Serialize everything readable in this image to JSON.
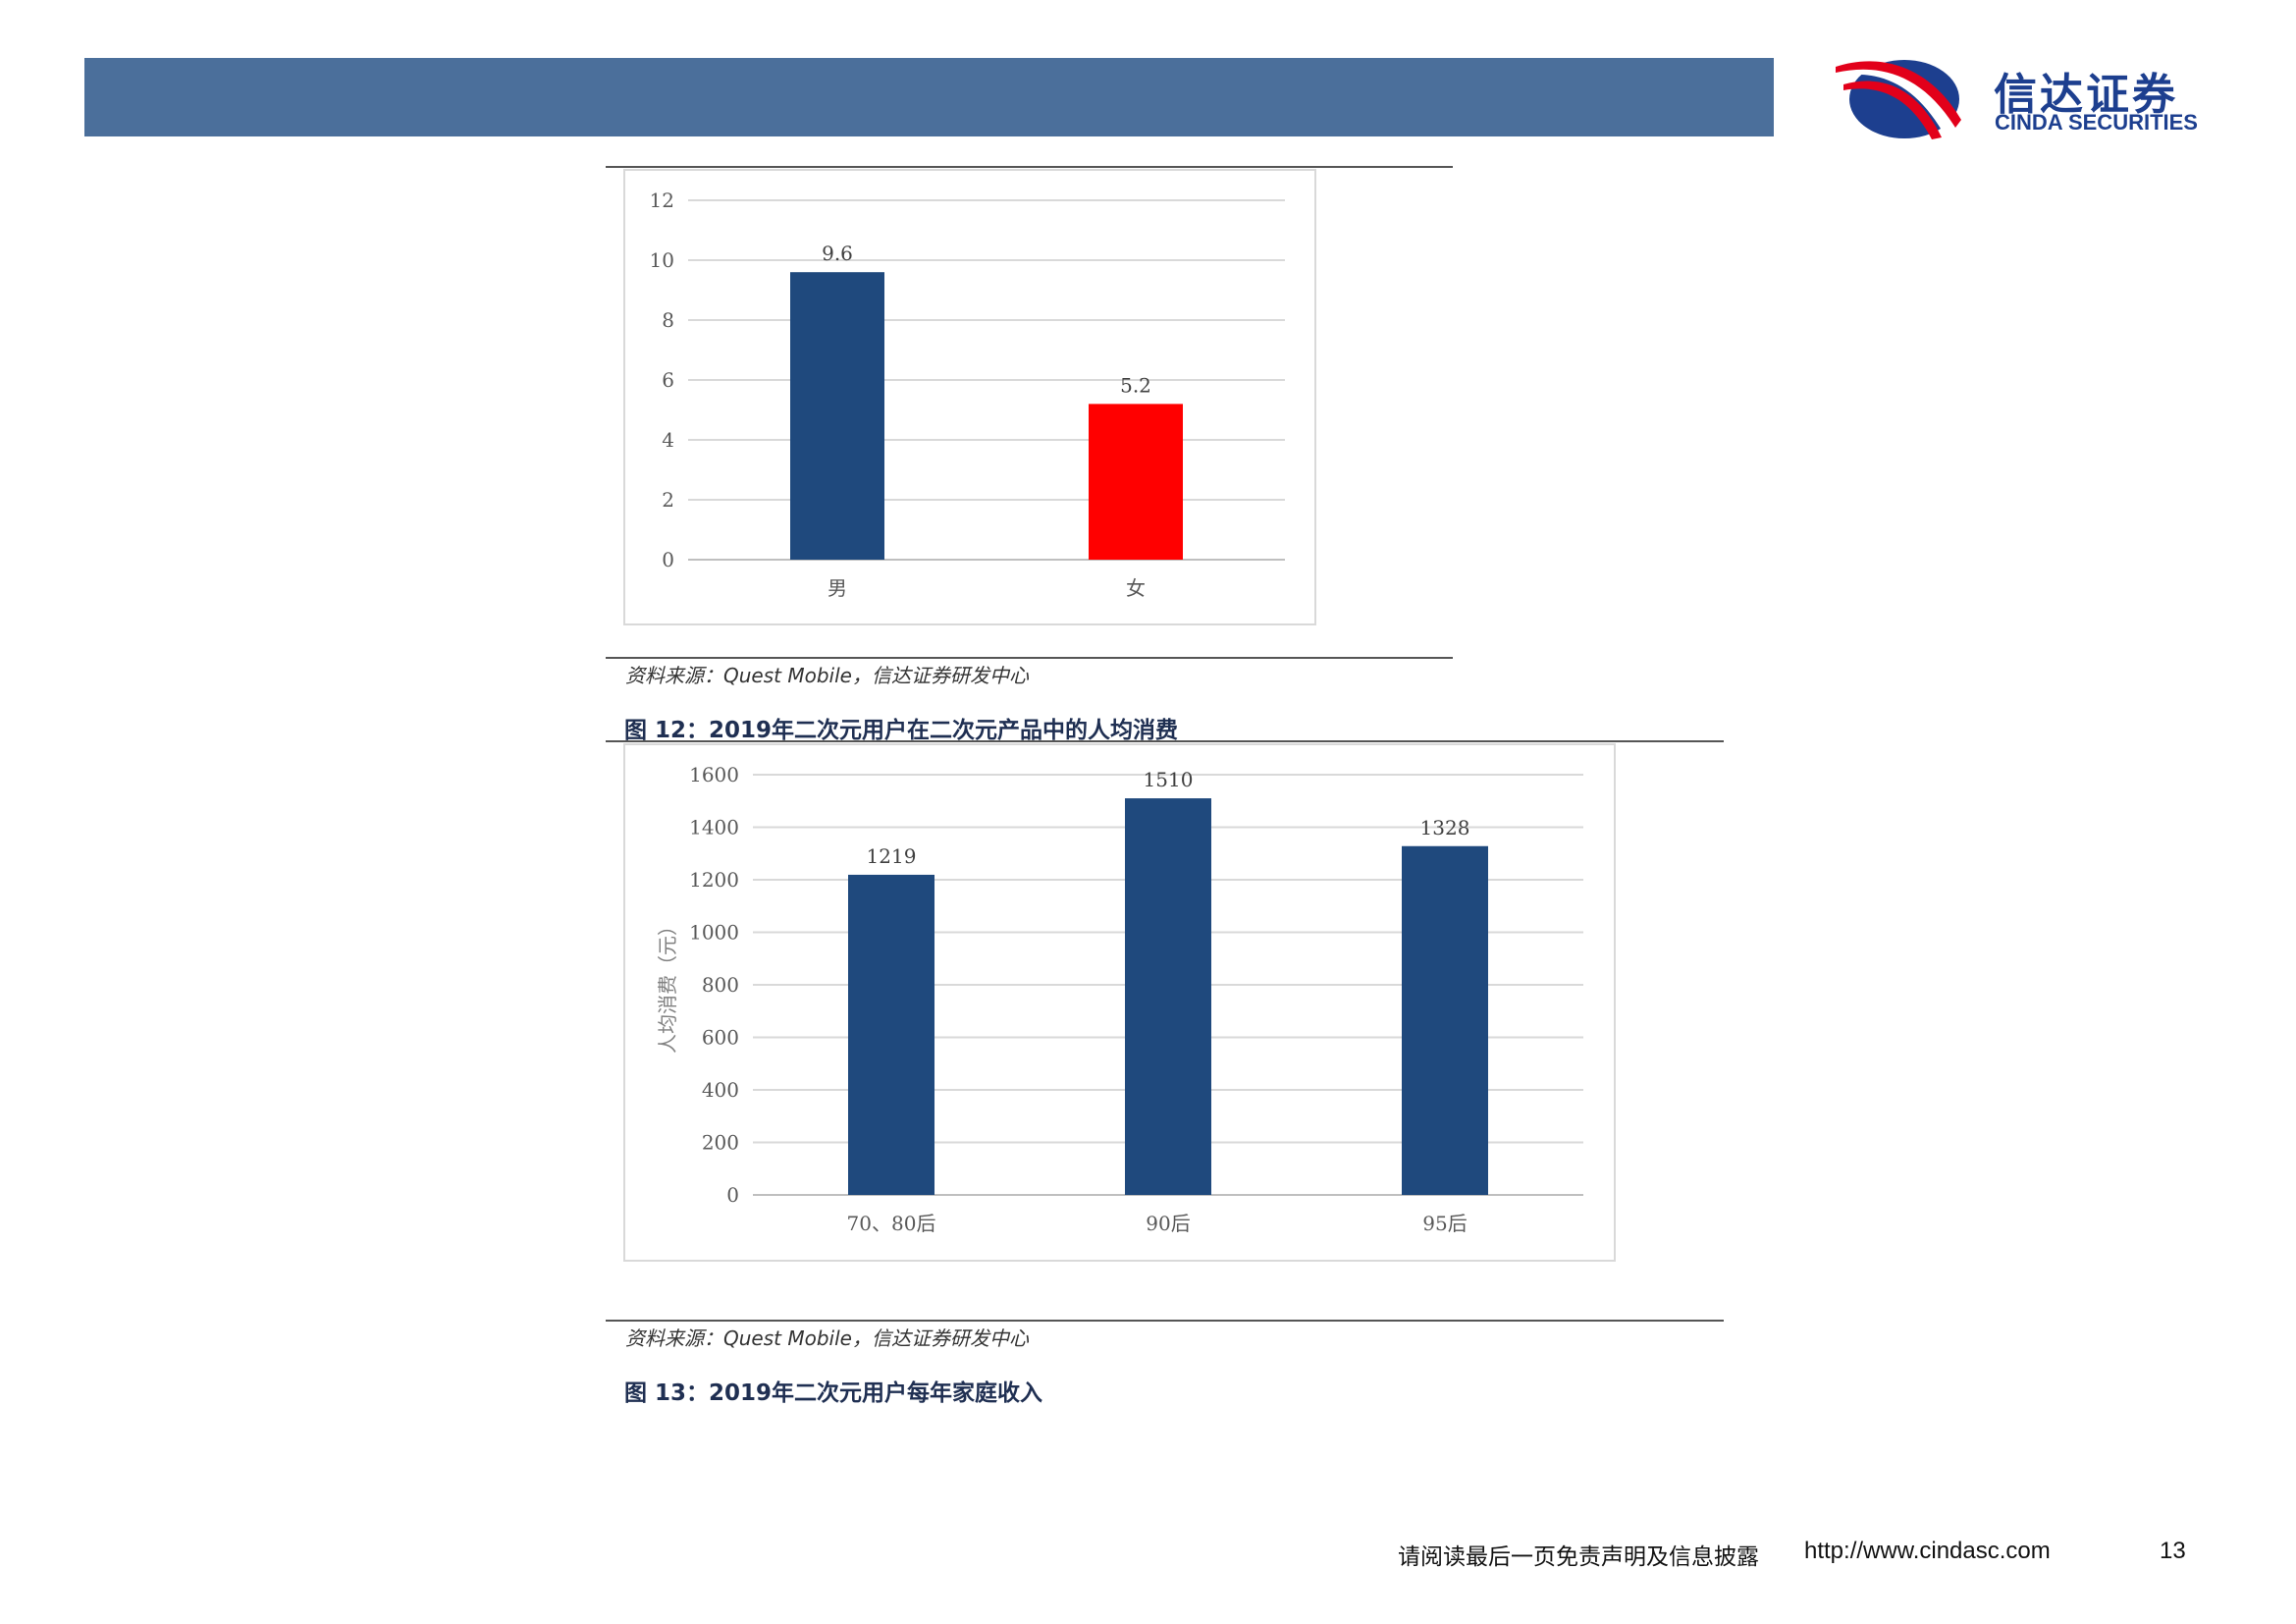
{
  "header": {
    "brand_cn": "信达证券",
    "brand_en": "CINDA SECURITIES",
    "colors": {
      "band": "#4b6f9b",
      "brand": "#1d3f8f",
      "accent": "#e2001a"
    }
  },
  "figure1": {
    "source": "资料来源：Quest Mobile，信达证券研发中心",
    "chart_data": {
      "type": "bar",
      "categories": [
        "男",
        "女"
      ],
      "values": [
        9.6,
        5.2
      ],
      "data_labels": [
        "9.6",
        "5.2"
      ],
      "bar_colors": [
        "#1f497d",
        "#ff0000"
      ],
      "ylim": [
        0,
        12
      ],
      "yticks": [
        "0",
        "2",
        "4",
        "6",
        "8",
        "10",
        "12"
      ],
      "title": "",
      "xlabel": "",
      "ylabel": "",
      "grid": true
    }
  },
  "figure2": {
    "title": "图 12：2019年二次元用户在二次元产品中的人均消费",
    "source": "资料来源：Quest Mobile，信达证券研发中心",
    "chart_data": {
      "type": "bar",
      "categories": [
        "70、80后",
        "90后",
        "95后"
      ],
      "values": [
        1219,
        1510,
        1328
      ],
      "data_labels": [
        "1219",
        "1510",
        "1328"
      ],
      "bar_colors": [
        "#1f497d",
        "#1f497d",
        "#1f497d"
      ],
      "ylim": [
        0,
        1600
      ],
      "yticks": [
        "0",
        "200",
        "400",
        "600",
        "800",
        "1000",
        "1200",
        "1400",
        "1600"
      ],
      "title": "",
      "xlabel": "",
      "ylabel": "人均消费（元）",
      "grid": true
    }
  },
  "figure3": {
    "title": "图 13：2019年二次元用户每年家庭收入"
  },
  "footer": {
    "disclaimer": "请阅读最后一页免责声明及信息披露",
    "url": "http://www.cindasc.com",
    "page_number": "13"
  }
}
